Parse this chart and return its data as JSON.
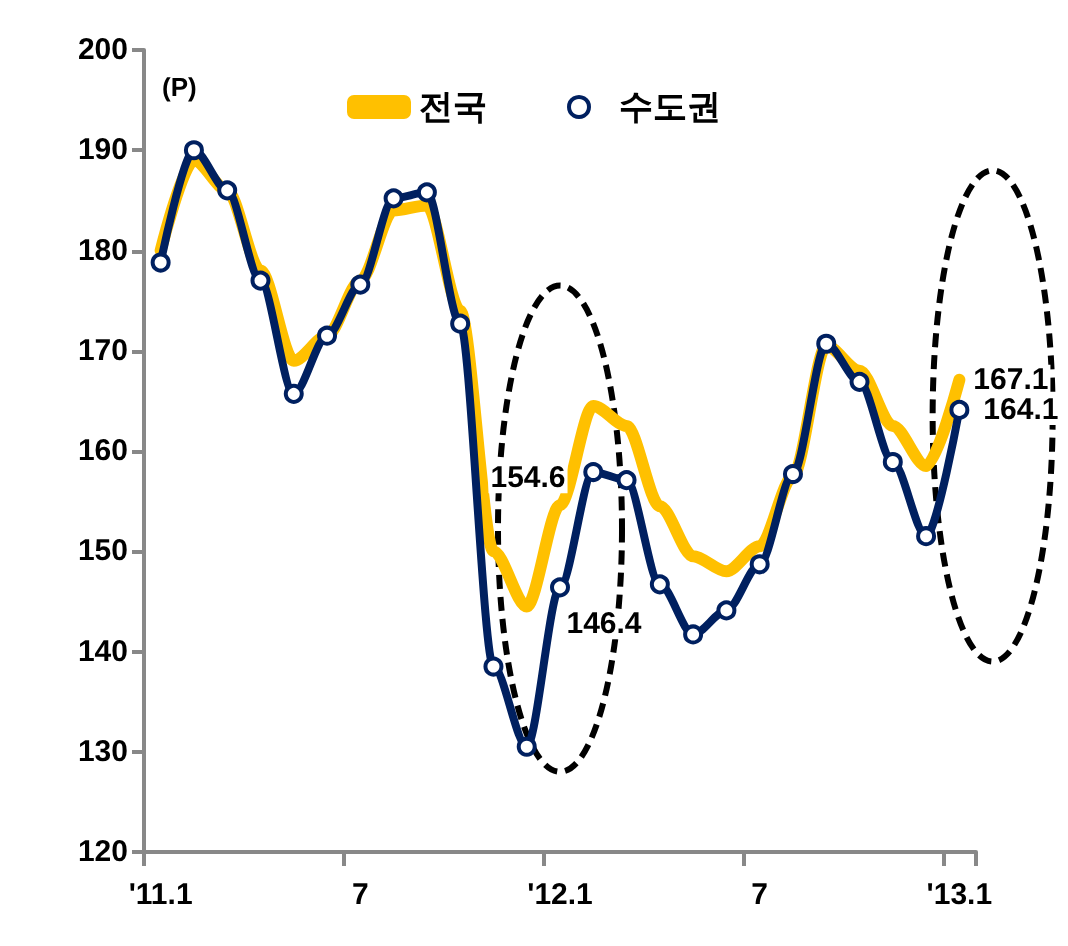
{
  "chart_data": {
    "type": "line",
    "ylabel": "(P)",
    "categories": [
      "'11.1",
      null,
      null,
      null,
      null,
      null,
      "7",
      null,
      null,
      null,
      null,
      null,
      "'12.1",
      null,
      null,
      null,
      null,
      null,
      "7",
      null,
      null,
      null,
      null,
      null,
      "'13.1"
    ],
    "series": [
      {
        "name": "전국",
        "color": "#ffc000",
        "marker": "none",
        "values": [
          180.0,
          189.0,
          186.0,
          178.0,
          169.0,
          171.5,
          177.0,
          184.0,
          184.5,
          174.0,
          150.0,
          144.5,
          154.6,
          164.5,
          162.5,
          154.5,
          149.5,
          148.0,
          150.5,
          157.5,
          170.5,
          168.0,
          162.5,
          158.5,
          167.1
        ],
        "value_labels": [
          null,
          null,
          null,
          null,
          null,
          null,
          null,
          null,
          null,
          null,
          null,
          null,
          "154.6",
          null,
          null,
          null,
          null,
          null,
          null,
          null,
          null,
          null,
          null,
          null,
          "167.1"
        ]
      },
      {
        "name": "수도권",
        "color": "#002060",
        "marker": "circle",
        "values": [
          178.8,
          190.0,
          186.0,
          177.0,
          165.7,
          171.5,
          176.6,
          185.2,
          185.8,
          172.7,
          138.5,
          130.5,
          146.4,
          157.9,
          157.1,
          146.7,
          141.7,
          144.1,
          148.7,
          157.7,
          170.7,
          166.9,
          158.9,
          151.5,
          164.1
        ],
        "value_labels": [
          null,
          null,
          null,
          null,
          null,
          null,
          null,
          null,
          null,
          null,
          null,
          null,
          "146.4",
          null,
          null,
          null,
          null,
          null,
          null,
          null,
          null,
          null,
          null,
          null,
          "164.1"
        ]
      }
    ],
    "ylim": [
      120,
      200
    ],
    "yticks": [
      120,
      130,
      140,
      150,
      160,
      170,
      180,
      190,
      200
    ],
    "grid": false,
    "legend": "top",
    "line_style": "solid"
  }
}
